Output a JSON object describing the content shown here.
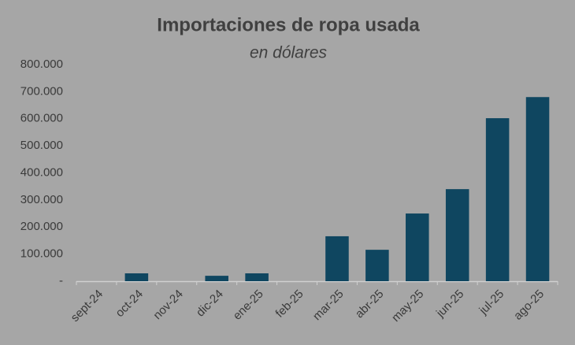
{
  "chart_data": {
    "type": "bar",
    "title": "Importaciones de ropa usada",
    "subtitle": "en dólares",
    "categories": [
      "sept-24",
      "oct-24",
      "nov-24",
      "dic-24",
      "ene-25",
      "feb-25",
      "mar-25",
      "abr-25",
      "may-25",
      "jun-25",
      "jul-25",
      "ago-25"
    ],
    "values": [
      0,
      29000,
      0,
      20000,
      29000,
      0,
      166000,
      116000,
      250000,
      340000,
      602000,
      680000
    ],
    "color": "#0f4660",
    "ylim": [
      0,
      800000
    ],
    "yticks": [
      {
        "value": 0,
        "label": "-"
      },
      {
        "value": 100000,
        "label": "100.000"
      },
      {
        "value": 200000,
        "label": "200.000"
      },
      {
        "value": 300000,
        "label": "300.000"
      },
      {
        "value": 400000,
        "label": "400.000"
      },
      {
        "value": 500000,
        "label": "500.000"
      },
      {
        "value": 600000,
        "label": "600.000"
      },
      {
        "value": 700000,
        "label": "700.000"
      },
      {
        "value": 800000,
        "label": "800.000"
      }
    ],
    "grid": false
  }
}
